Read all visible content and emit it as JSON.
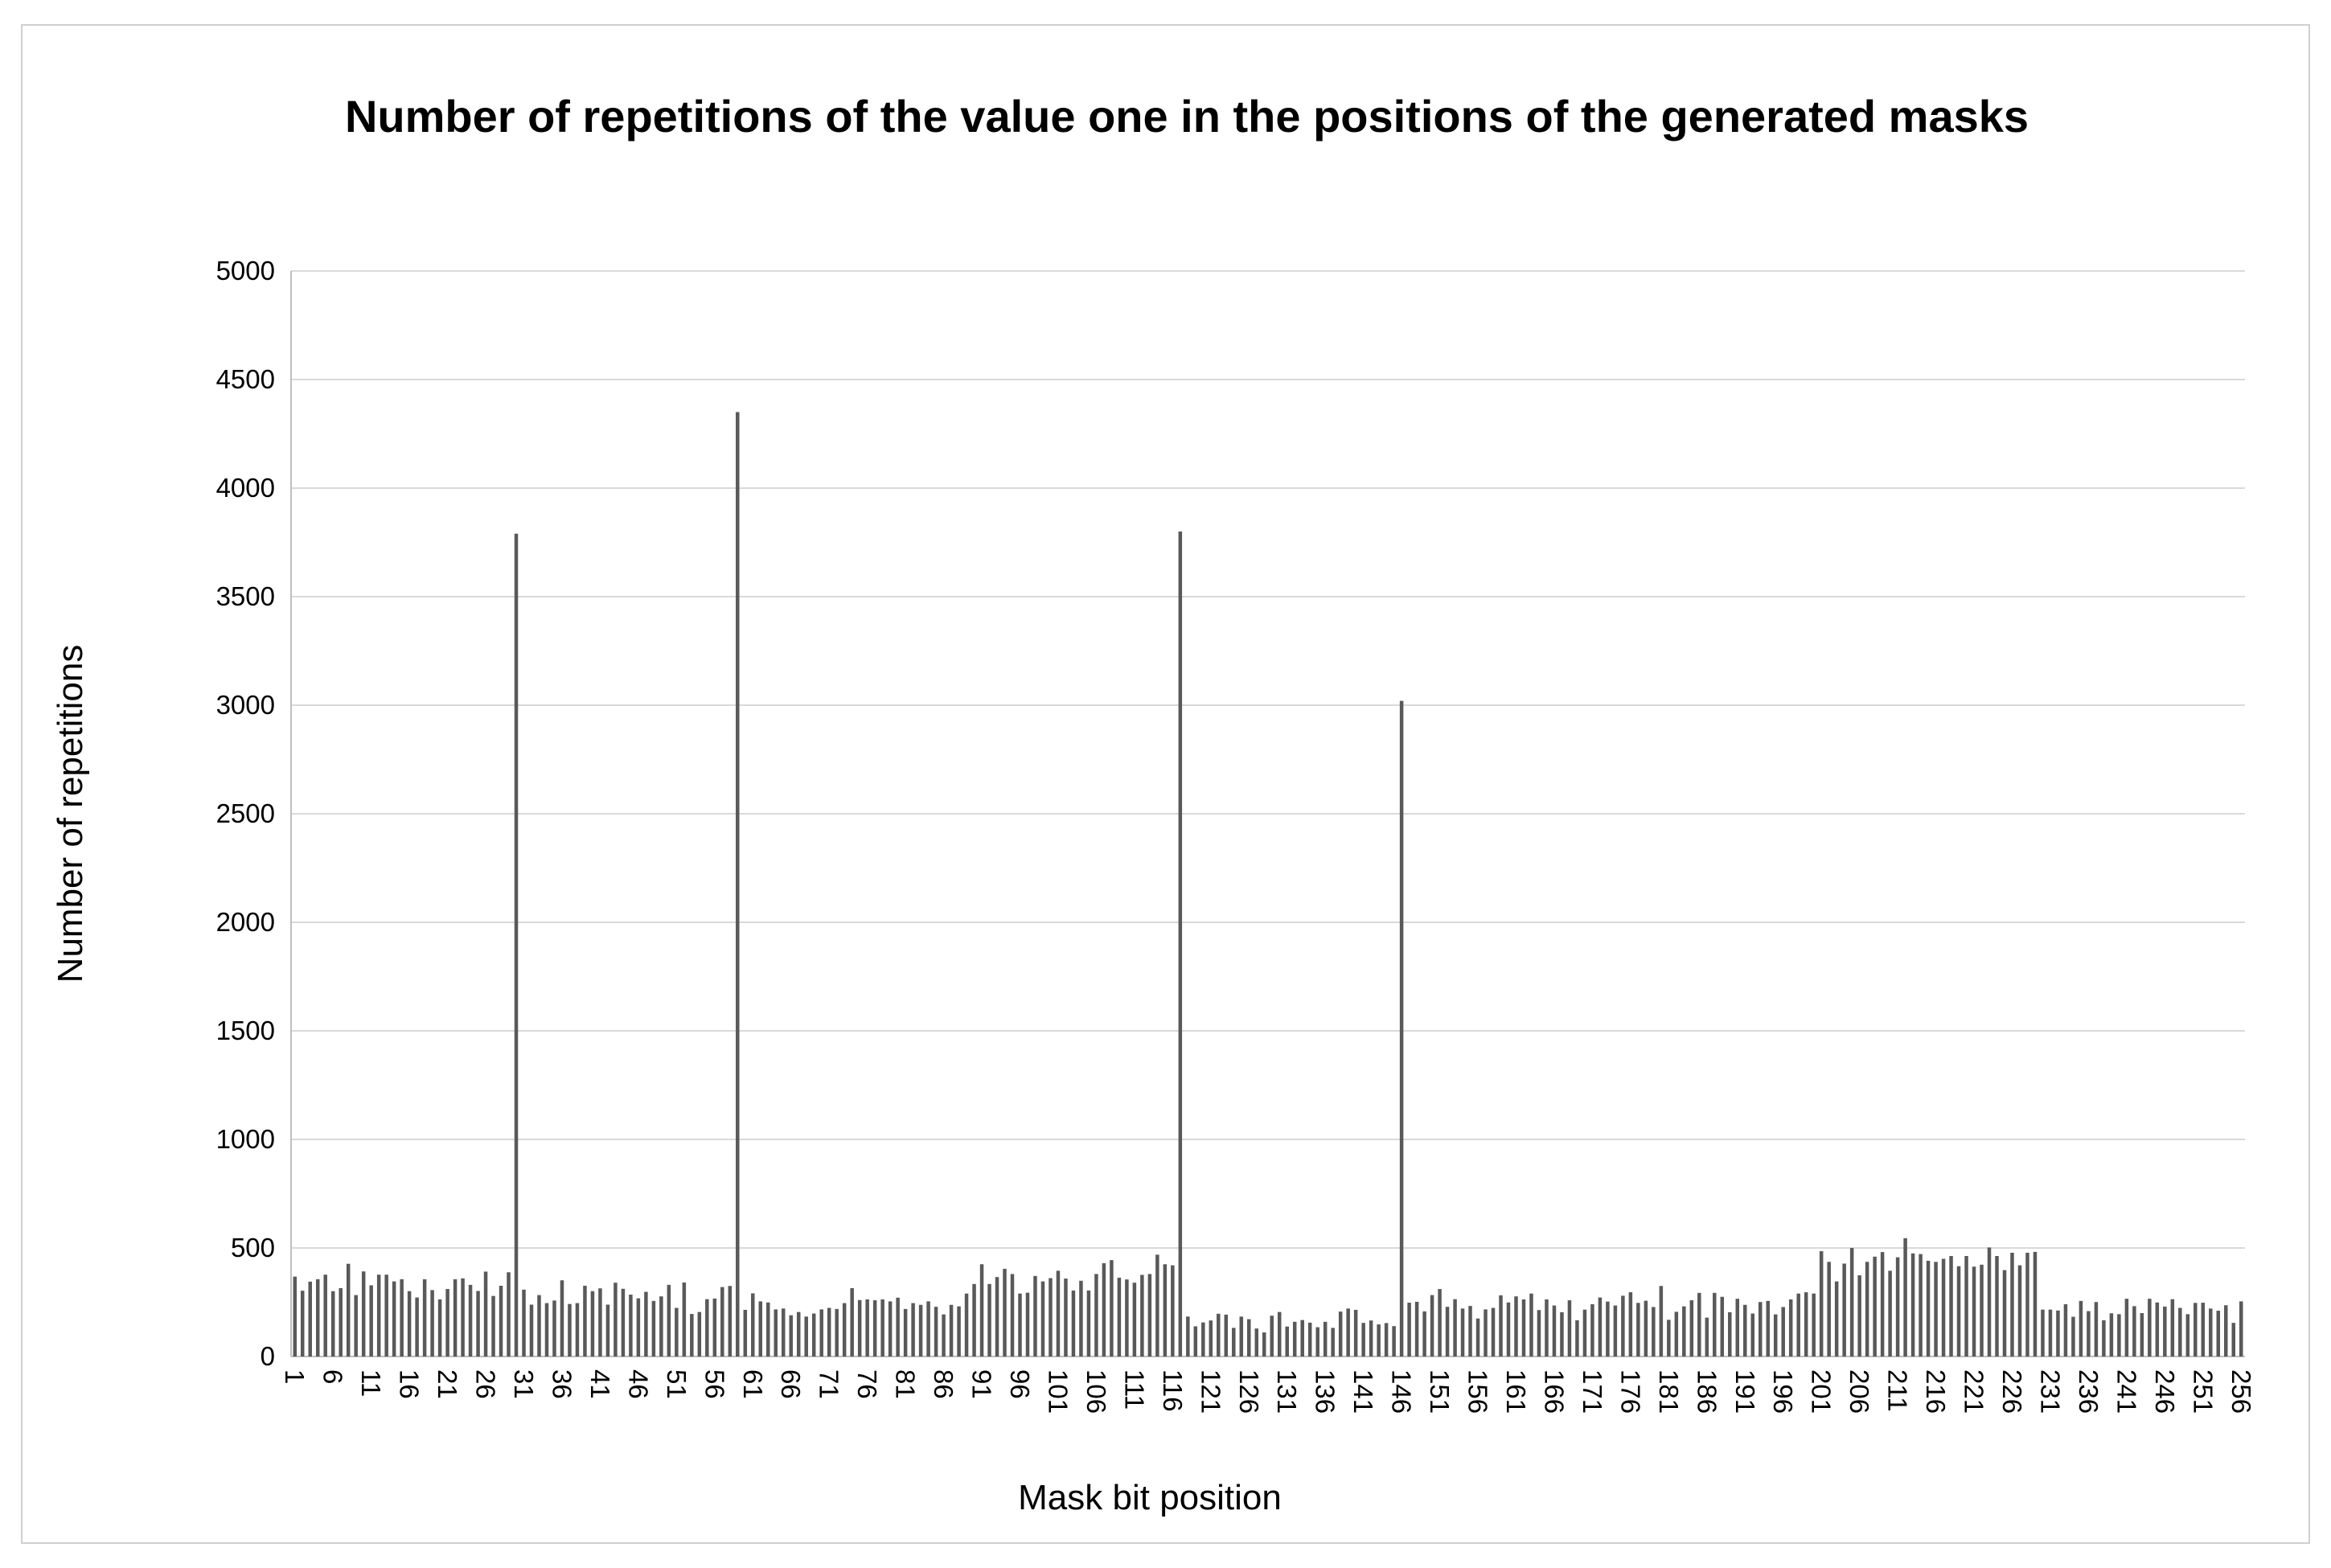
{
  "figure": {
    "background_color": "#ffffff",
    "border_color": "#cfcfcf"
  },
  "chart_data": {
    "type": "bar",
    "title": "Number of repetitions of the value one in the positions of the generated masks",
    "xlabel": "Mask bit position",
    "ylabel": "Number of repetitions",
    "ylim": [
      0,
      5000
    ],
    "ytick_step": 500,
    "yticks": [
      0,
      500,
      1000,
      1500,
      2000,
      2500,
      3000,
      3500,
      4000,
      4500,
      5000
    ],
    "x_range": [
      1,
      256
    ],
    "xtick_step": 5,
    "xtick_labels": [
      1,
      6,
      11,
      16,
      21,
      26,
      31,
      36,
      41,
      46,
      51,
      56,
      61,
      66,
      71,
      76,
      81,
      86,
      91,
      96,
      101,
      106,
      111,
      116,
      121,
      126,
      131,
      136,
      141,
      146,
      151,
      156,
      161,
      166,
      171,
      176,
      181,
      186,
      191,
      196,
      201,
      206,
      211,
      216,
      221,
      226,
      231,
      236,
      241,
      246,
      251,
      256
    ],
    "grid": "horizontal",
    "legend_position": "none",
    "bar_color": "#595959",
    "gridline_color": "#d9d9d9",
    "axis_line_color": "#bfbfbf",
    "notable_peaks": [
      {
        "position": 30,
        "value": 3790
      },
      {
        "position": 59,
        "value": 4350
      },
      {
        "position": 117,
        "value": 3800
      },
      {
        "position": 146,
        "value": 3020
      }
    ],
    "values": [
      368,
      303,
      345,
      356,
      377,
      301,
      315,
      427,
      283,
      392,
      328,
      377,
      377,
      346,
      356,
      301,
      272,
      356,
      306,
      263,
      311,
      356,
      360,
      330,
      302,
      391,
      279,
      326,
      388,
      3790,
      308,
      239,
      283,
      246,
      258,
      351,
      242,
      246,
      326,
      301,
      314,
      239,
      340,
      312,
      285,
      268,
      298,
      256,
      277,
      330,
      224,
      341,
      196,
      205,
      264,
      267,
      320,
      325,
      4350,
      215,
      291,
      254,
      249,
      217,
      221,
      190,
      205,
      184,
      198,
      217,
      224,
      219,
      246,
      315,
      260,
      263,
      259,
      263,
      254,
      271,
      219,
      246,
      238,
      254,
      229,
      194,
      238,
      231,
      290,
      334,
      425,
      334,
      366,
      404,
      380,
      290,
      294,
      371,
      346,
      361,
      395,
      359,
      304,
      349,
      304,
      380,
      430,
      444,
      363,
      355,
      340,
      376,
      380,
      469,
      425,
      420,
      3800,
      184,
      139,
      157,
      166,
      197,
      193,
      132,
      184,
      172,
      129,
      111,
      188,
      205,
      138,
      160,
      168,
      156,
      135,
      160,
      132,
      207,
      221,
      215,
      155,
      166,
      148,
      154,
      140,
      3020,
      248,
      252,
      208,
      283,
      311,
      229,
      264,
      221,
      233,
      175,
      217,
      224,
      282,
      249,
      277,
      263,
      290,
      214,
      263,
      235,
      204,
      259,
      167,
      216,
      241,
      272,
      253,
      235,
      280,
      296,
      247,
      257,
      228,
      325,
      169,
      206,
      231,
      259,
      293,
      179,
      293,
      275,
      204,
      266,
      238,
      198,
      251,
      256,
      194,
      228,
      263,
      290,
      296,
      290,
      485,
      436,
      346,
      428,
      500,
      374,
      436,
      460,
      481,
      395,
      457,
      545,
      475,
      472,
      441,
      436,
      450,
      463,
      416,
      463,
      414,
      423,
      502,
      463,
      398,
      478,
      420,
      478,
      482,
      216,
      216,
      212,
      241,
      183,
      256,
      209,
      251,
      167,
      199,
      195,
      266,
      232,
      200,
      266,
      249,
      230,
      264,
      224,
      195,
      247,
      248,
      221,
      211,
      236,
      155,
      254
    ]
  }
}
